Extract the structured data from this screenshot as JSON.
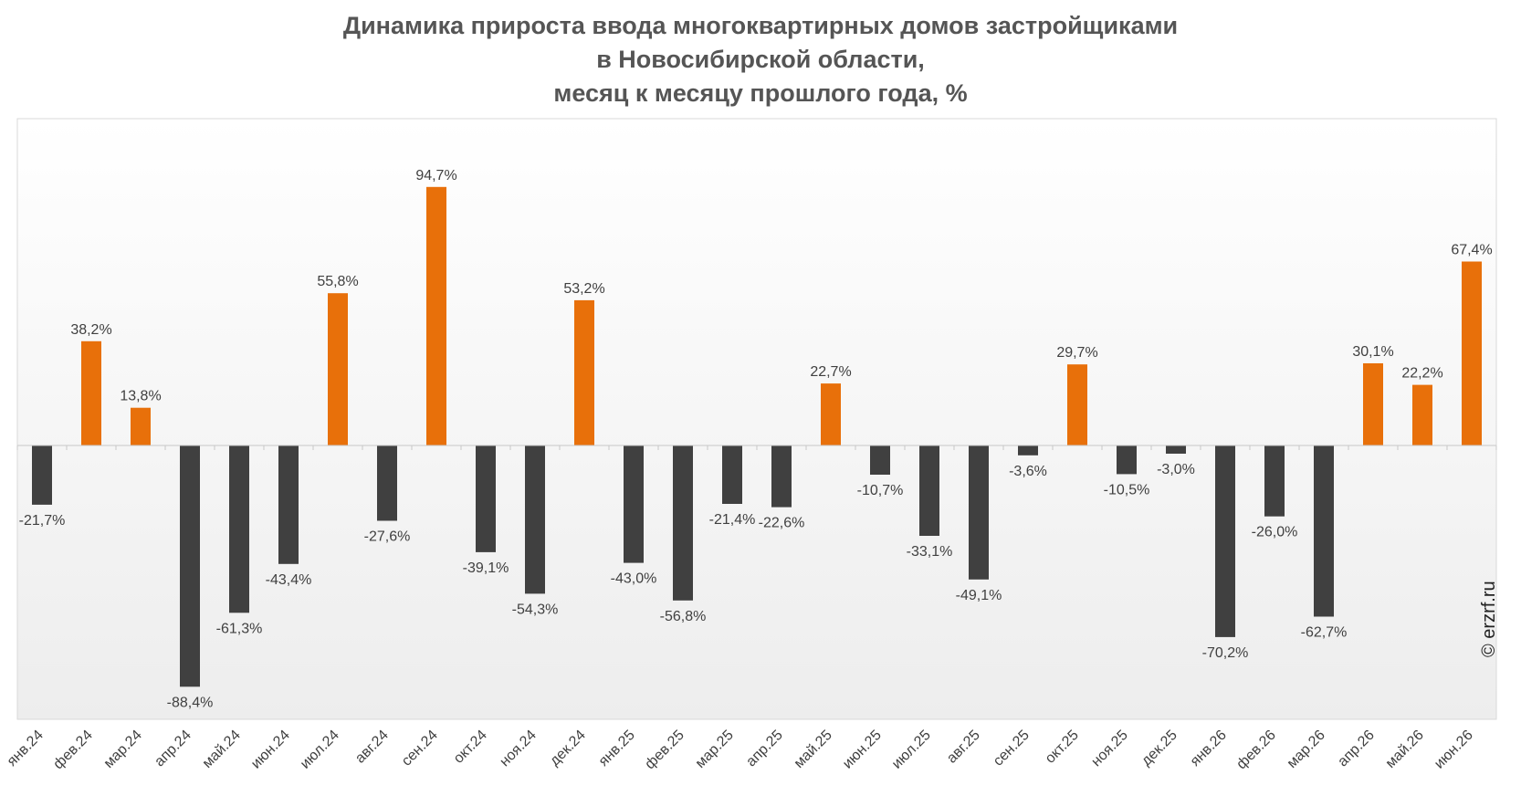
{
  "chart_data": {
    "type": "bar",
    "title_lines": [
      "Динамика прироста ввода многоквартирных домов застройщиками",
      "в Новосибирской области,",
      "месяц к месяцу прошлого года, %"
    ],
    "categories": [
      "янв.24",
      "фев.24",
      "мар.24",
      "апр.24",
      "май.24",
      "июн.24",
      "июл.24",
      "авг.24",
      "сен.24",
      "окт.24",
      "ноя.24",
      "дек.24",
      "янв.25",
      "фев.25",
      "мар.25",
      "апр.25",
      "май.25",
      "июн.25",
      "июл.25",
      "авг.25",
      "сен.25",
      "окт.25",
      "ноя.25",
      "дек.25",
      "янв.26",
      "фев.26",
      "мар.26",
      "апр.26",
      "май.26",
      "июн.26"
    ],
    "values": [
      -21.7,
      38.2,
      13.8,
      -88.4,
      -61.3,
      -43.4,
      55.8,
      -27.6,
      94.7,
      -39.1,
      -54.3,
      53.2,
      -43.0,
      -56.8,
      -21.4,
      -22.6,
      22.7,
      -10.7,
      -33.1,
      -49.1,
      -3.6,
      29.7,
      -10.5,
      -3.0,
      -70.2,
      -26.0,
      -62.7,
      30.1,
      22.2,
      67.4
    ],
    "labels": [
      "-21,7%",
      "38,2%",
      "13,8%",
      "-88,4%",
      "-61,3%",
      "-43,4%",
      "55,8%",
      "-27,6%",
      "94,7%",
      "-39,1%",
      "-54,3%",
      "53,2%",
      "-43,0%",
      "-56,8%",
      "-21,4%",
      "-22,6%",
      "22,7%",
      "-10,7%",
      "-33,1%",
      "-49,1%",
      "-3,6%",
      "29,7%",
      "-10,5%",
      "-3,0%",
      "-70,2%",
      "-26,0%",
      "-62,7%",
      "30,1%",
      "22,2%",
      "67,4%"
    ],
    "colors": {
      "positive": "#E8700A",
      "negative": "#404040",
      "label": "#404040"
    },
    "grid": false,
    "legend": "none",
    "xlabel": "",
    "ylabel": ""
  },
  "watermark": "© erzrf.ru"
}
